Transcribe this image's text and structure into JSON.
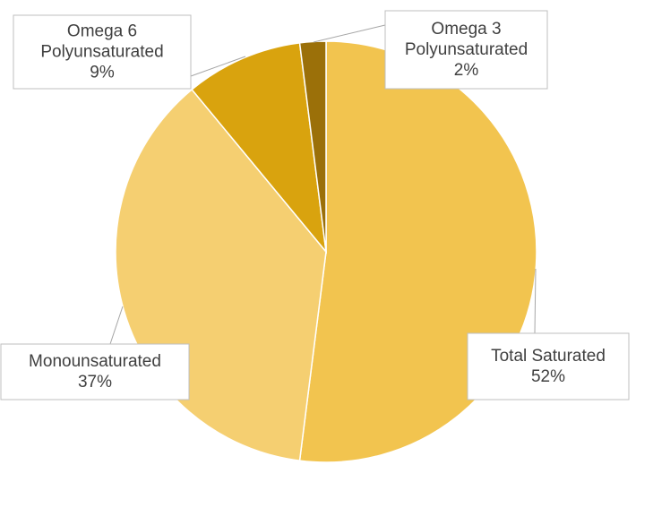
{
  "chart_data": {
    "type": "pie",
    "title": "",
    "legend": "none",
    "slices": [
      {
        "name": "Total Saturated",
        "value": 52,
        "label": "52%",
        "color": "#F2C44F"
      },
      {
        "name": "Monounsaturated",
        "value": 37,
        "label": "37%",
        "color": "#F5CF71"
      },
      {
        "name": "Omega 6 Polyunsaturated",
        "value": 9,
        "label": "9%",
        "color": "#D9A30E"
      },
      {
        "name": "Omega 3 Polyunsaturated",
        "value": 2,
        "label": "2%",
        "color": "#9B7009"
      }
    ]
  }
}
